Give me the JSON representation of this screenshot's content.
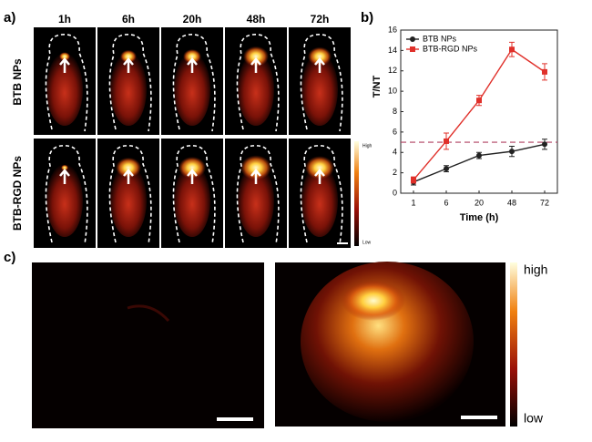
{
  "panels": {
    "a": "a)",
    "b": "b)",
    "c": "c)"
  },
  "panel_a": {
    "timepoints": [
      "1h",
      "6h",
      "20h",
      "48h",
      "72h"
    ],
    "rows": [
      "BTB NPs",
      "BTB-RGD NPs"
    ],
    "colorbar": {
      "high": "High",
      "low": "Low"
    }
  },
  "panel_c": {
    "colorbar": {
      "high": "high",
      "low": "low"
    }
  },
  "chart_data": {
    "type": "line",
    "x_label": "Time (h)",
    "y_label": "T/NT",
    "categories": [
      "1",
      "6",
      "20",
      "48",
      "72"
    ],
    "series": [
      {
        "name": "BTB NPs",
        "color": "#222222",
        "marker": "circle",
        "values": [
          1.1,
          2.4,
          3.7,
          4.1,
          4.8
        ],
        "errors": [
          0.3,
          0.3,
          0.3,
          0.5,
          0.5
        ]
      },
      {
        "name": "BTB-RGD NPs",
        "color": "#e0302a",
        "marker": "square",
        "values": [
          1.3,
          5.1,
          9.1,
          14.1,
          11.9
        ],
        "errors": [
          0.3,
          0.8,
          0.5,
          0.7,
          0.8
        ]
      }
    ],
    "ylim": [
      0,
      16
    ],
    "yticks": [
      0,
      2,
      4,
      6,
      8,
      10,
      12,
      14,
      16
    ],
    "threshold": {
      "value": 5,
      "color": "#b04060"
    },
    "legend": "upper left"
  }
}
